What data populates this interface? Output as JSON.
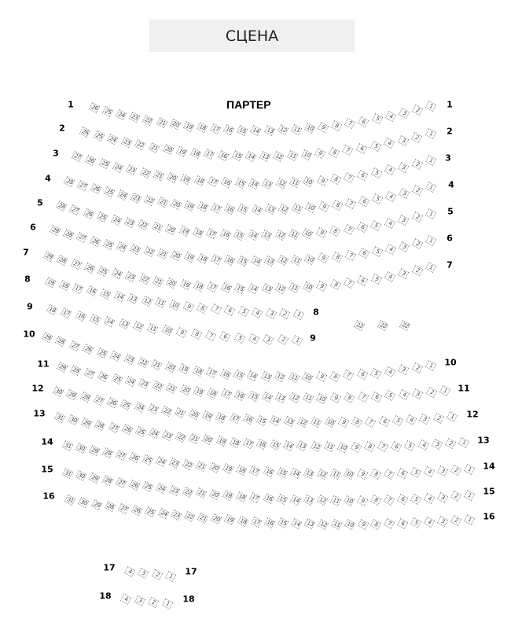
{
  "stage": {
    "label": "СЦЕНА"
  },
  "section": {
    "label": "ПАРТЕР"
  },
  "colors": {
    "seat_border": "#8a8a8a",
    "seat_text": "#444444",
    "stage_bg": "#f0f0f0"
  },
  "rows": [
    {
      "row": "1",
      "seat_count": 26
    },
    {
      "row": "2",
      "seat_count": 26
    },
    {
      "row": "3",
      "seat_count": 27
    },
    {
      "row": "4",
      "seat_count": 28
    },
    {
      "row": "5",
      "seat_count": 28
    },
    {
      "row": "6",
      "seat_count": 29
    },
    {
      "row": "7",
      "seat_count": 29
    },
    {
      "row": "8",
      "seat_count": 19
    },
    {
      "row": "9",
      "seat_count": 18
    },
    {
      "row": "10",
      "seat_count": 29
    },
    {
      "row": "11",
      "seat_count": 29
    },
    {
      "row": "12",
      "seat_count": 30
    },
    {
      "row": "13",
      "seat_count": 31
    },
    {
      "row": "14",
      "seat_count": 31
    },
    {
      "row": "15",
      "seat_count": 31
    },
    {
      "row": "16",
      "seat_count": 31
    },
    {
      "row": "17",
      "seat_count": 4
    },
    {
      "row": "18",
      "seat_count": 4
    }
  ],
  "extra_seats": [
    "22",
    "22",
    "22"
  ]
}
